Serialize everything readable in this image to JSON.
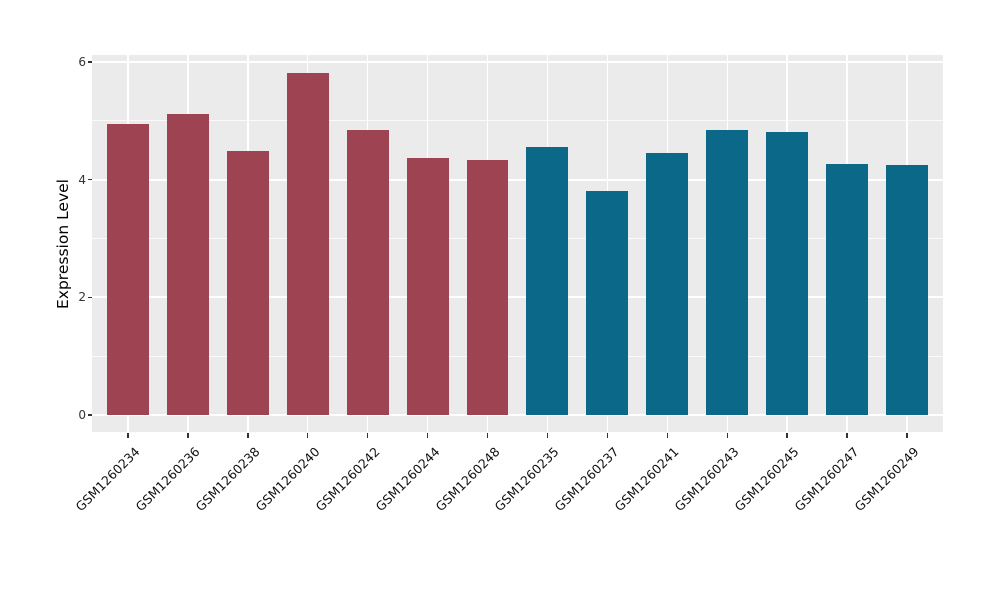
{
  "chart_data": {
    "type": "bar",
    "title": "",
    "xlabel": "",
    "ylabel": "Expression Level",
    "categories": [
      "GSM1260234",
      "GSM1260236",
      "GSM1260238",
      "GSM1260240",
      "GSM1260242",
      "GSM1260244",
      "GSM1260248",
      "GSM1260235",
      "GSM1260237",
      "GSM1260241",
      "GSM1260243",
      "GSM1260245",
      "GSM1260247",
      "GSM1260249"
    ],
    "values": [
      4.95,
      5.11,
      4.49,
      5.81,
      4.84,
      4.37,
      4.33,
      4.55,
      3.81,
      4.45,
      4.85,
      4.81,
      4.26,
      4.25
    ],
    "groups": [
      "group1",
      "group1",
      "group1",
      "group1",
      "group1",
      "group1",
      "group1",
      "group2",
      "group2",
      "group2",
      "group2",
      "group2",
      "group2",
      "group2"
    ],
    "group_colors": {
      "group1": "#9D4352",
      "group2": "#0C6888"
    },
    "yticks": [
      0,
      2,
      4,
      6
    ],
    "yticks_minor": [
      1,
      3,
      5
    ],
    "ylim": [
      -0.29,
      6.12
    ],
    "bar_width_ratio": 0.7,
    "x_expand": 0.6,
    "x_tick_rotation_deg": 45,
    "grid": "on",
    "legend": "none"
  },
  "style": {
    "figure_bg": "#FFFFFF",
    "panel_bg": "#EBEBEB",
    "grid_major_color": "#FFFFFF",
    "grid_minor_color": "#FFFFFF",
    "tick_mark_color": "#333333",
    "y_tick_label_color": "#333333",
    "x_tick_label_color": "#111111",
    "axis_title_color": "#000000"
  }
}
